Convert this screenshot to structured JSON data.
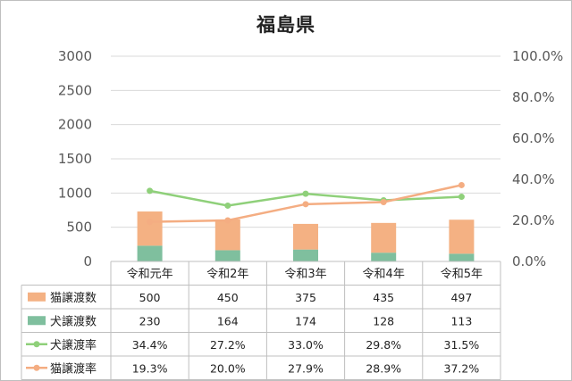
{
  "chart_data": {
    "type": "bar",
    "title": "福島県",
    "categories": [
      "令和元年",
      "令和2年",
      "令和3年",
      "令和4年",
      "令和5年"
    ],
    "left_axis": {
      "ylim": [
        0,
        3000
      ],
      "ticks": [
        "0",
        "500",
        "1000",
        "1500",
        "2000",
        "2500",
        "3000"
      ]
    },
    "right_axis": {
      "ylim": [
        0,
        100
      ],
      "ticks": [
        "0.0%",
        "20.0%",
        "40.0%",
        "60.0%",
        "80.0%",
        "100.0%"
      ]
    },
    "grid": true,
    "legend": "data-table",
    "series": [
      {
        "name": "猫譲渡数",
        "kind": "stacked-bar",
        "axis": "left",
        "color": "#f4b183",
        "values": [
          500,
          450,
          375,
          435,
          497
        ],
        "labels": [
          "500",
          "450",
          "375",
          "435",
          "497"
        ]
      },
      {
        "name": "犬譲渡数",
        "kind": "stacked-bar",
        "axis": "left",
        "color": "#7fbf9e",
        "values": [
          230,
          164,
          174,
          128,
          113
        ],
        "labels": [
          "230",
          "164",
          "174",
          "128",
          "113"
        ]
      },
      {
        "name": "犬譲渡率",
        "kind": "line",
        "axis": "right",
        "color": "#8fd07a",
        "values": [
          34.4,
          27.2,
          33.0,
          29.8,
          31.5
        ],
        "labels": [
          "34.4%",
          "27.2%",
          "33.0%",
          "29.8%",
          "31.5%"
        ]
      },
      {
        "name": "猫譲渡率",
        "kind": "line",
        "axis": "right",
        "color": "#f4ad82",
        "values": [
          19.3,
          20.0,
          27.9,
          28.9,
          37.2
        ],
        "labels": [
          "19.3%",
          "20.0%",
          "27.9%",
          "28.9%",
          "37.2%"
        ]
      }
    ]
  }
}
